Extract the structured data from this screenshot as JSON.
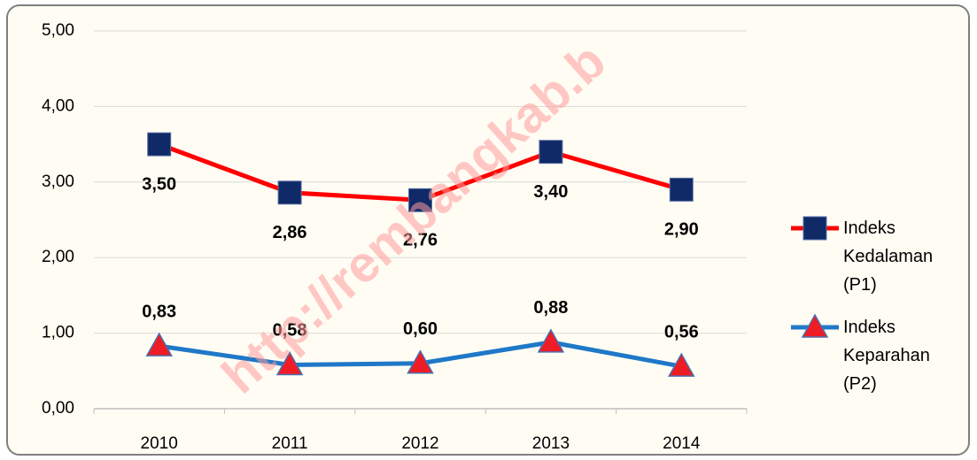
{
  "chart_data": {
    "type": "line",
    "categories": [
      "2010",
      "2011",
      "2012",
      "2013",
      "2014"
    ],
    "series": [
      {
        "name": "Indeks Kedalaman (P1)",
        "color": "#ff0000",
        "marker": "square",
        "marker_color": "#0f2a66",
        "values": [
          3.5,
          2.86,
          2.76,
          3.4,
          2.9
        ],
        "value_labels": [
          "3,50",
          "2,86",
          "2,76",
          "3,40",
          "2,90"
        ],
        "label_position": "below"
      },
      {
        "name": "Indeks Keparahan (P2)",
        "color": "#1f78c8",
        "marker": "triangle",
        "marker_color": "#ee1c24",
        "values": [
          0.83,
          0.58,
          0.6,
          0.88,
          0.56
        ],
        "value_labels": [
          "0,83",
          "0,58",
          "0,60",
          "0,88",
          "0,56"
        ],
        "label_position": "above"
      }
    ],
    "ylim": [
      0,
      5
    ],
    "yticks": [
      {
        "value": 0,
        "label": "0,00"
      },
      {
        "value": 1,
        "label": "1,00"
      },
      {
        "value": 2,
        "label": "2,00"
      },
      {
        "value": 3,
        "label": "3,00"
      },
      {
        "value": 4,
        "label": "4,00"
      },
      {
        "value": 5,
        "label": "5,00"
      }
    ],
    "grid": true,
    "legend": "right",
    "watermark": "http://rembangkab.b"
  }
}
